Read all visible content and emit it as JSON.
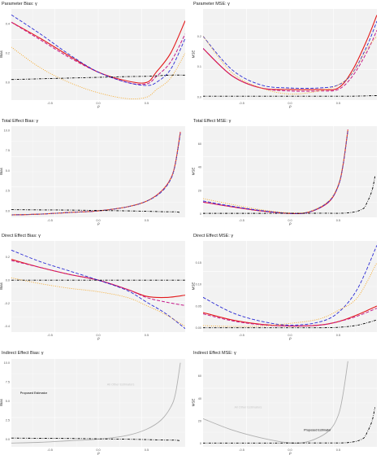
{
  "colors": {
    "proposed": "#000000",
    "red": "#e31a1c",
    "magenta": "#c51b8a",
    "blue": "#2b2bd4",
    "orange": "#f5a623",
    "gray": "#b0b0b0",
    "panel_bg": "#f2f2f2",
    "grid": "#ffffff",
    "annotation_gray": "#c8c8c8"
  },
  "chart_data": [
    {
      "type": "line",
      "title": "Parameter Bias: γ",
      "xlabel": "ρ",
      "ylabel": "Bias",
      "xlim": [
        -0.9,
        0.9
      ],
      "ylim": [
        -0.12,
        0.5
      ],
      "xticks": [
        -0.5,
        0.0,
        0.5
      ],
      "xtick_labels": [
        "-0.5",
        "0.0",
        "0.5"
      ],
      "yticks": [
        0.0,
        0.2,
        0.4
      ],
      "ytick_labels": [
        "0.0",
        "0.2",
        "0.4"
      ],
      "grid": true,
      "x": [
        -0.9,
        -0.6,
        -0.3,
        0.0,
        0.3,
        0.5,
        0.6,
        0.75,
        0.9
      ],
      "series": [
        {
          "style": "solid-red",
          "values": [
            0.41,
            0.3,
            0.18,
            0.07,
            0.01,
            0.0,
            0.07,
            0.2,
            0.42
          ]
        },
        {
          "style": "dashed-magenta",
          "values": [
            0.41,
            0.29,
            0.17,
            0.07,
            0.0,
            -0.01,
            0.04,
            0.14,
            0.33
          ]
        },
        {
          "style": "dashed-blue",
          "values": [
            0.46,
            0.33,
            0.19,
            0.07,
            0.0,
            -0.02,
            0.0,
            0.09,
            0.3
          ]
        },
        {
          "style": "dotted-orange",
          "values": [
            0.24,
            0.1,
            0.0,
            -0.07,
            -0.11,
            -0.1,
            -0.05,
            0.03,
            0.2
          ]
        },
        {
          "style": "dotdash-black",
          "values": [
            0.02,
            0.025,
            0.03,
            0.035,
            0.04,
            0.042,
            0.045,
            0.05,
            0.05
          ]
        }
      ]
    },
    {
      "type": "line",
      "title": "Parameter MSE: γ",
      "xlabel": "ρ",
      "ylabel": "MSE",
      "xlim": [
        -0.9,
        0.9
      ],
      "ylim": [
        -0.01,
        0.29
      ],
      "xticks": [
        -0.5,
        0.0,
        0.5
      ],
      "xtick_labels": [
        "-0.5",
        "0.0",
        "0.5"
      ],
      "yticks": [
        0.0,
        0.1,
        0.2
      ],
      "ytick_labels": [
        "0.0",
        "0.1",
        "0.2"
      ],
      "grid": true,
      "x": [
        -0.9,
        -0.6,
        -0.3,
        0.0,
        0.3,
        0.5,
        0.65,
        0.8,
        0.9
      ],
      "series": [
        {
          "style": "solid-red",
          "values": [
            0.16,
            0.07,
            0.03,
            0.025,
            0.025,
            0.03,
            0.09,
            0.19,
            0.27
          ]
        },
        {
          "style": "dashed-magenta",
          "values": [
            0.16,
            0.07,
            0.03,
            0.02,
            0.02,
            0.025,
            0.07,
            0.15,
            0.22
          ]
        },
        {
          "style": "dashed-blue",
          "values": [
            0.2,
            0.09,
            0.04,
            0.03,
            0.03,
            0.04,
            0.08,
            0.17,
            0.25
          ]
        },
        {
          "style": "dotted-orange",
          "values": [
            0.2,
            0.08,
            0.03,
            0.01,
            0.02,
            0.04,
            0.08,
            0.16,
            0.2
          ]
        },
        {
          "style": "dotdash-black",
          "values": [
            0.003,
            0.003,
            0.003,
            0.003,
            0.003,
            0.003,
            0.003,
            0.004,
            0.005
          ]
        }
      ]
    },
    {
      "type": "line",
      "title": "Total Effect Bias: γ",
      "xlabel": "ρ",
      "ylabel": "Bias",
      "xlim": [
        -0.9,
        0.9
      ],
      "ylim": [
        -0.8,
        10.5
      ],
      "xticks": [
        -0.5,
        0.0,
        0.5
      ],
      "xtick_labels": [
        "-0.5",
        "0.0",
        "0.5"
      ],
      "yticks": [
        0.0,
        2.5,
        5.0,
        7.5,
        10.0
      ],
      "ytick_labels": [
        "0.0",
        "2.5",
        "5.0",
        "7.5",
        "10.0"
      ],
      "grid": true,
      "x": [
        -0.9,
        -0.6,
        -0.3,
        0.0,
        0.3,
        0.5,
        0.65,
        0.75,
        0.8,
        0.85
      ],
      "series": [
        {
          "style": "solid-red",
          "values": [
            -0.5,
            -0.4,
            -0.2,
            0.0,
            0.5,
            1.2,
            2.4,
            4.0,
            6.0,
            9.8
          ]
        },
        {
          "style": "dashed-magenta",
          "values": [
            -0.5,
            -0.4,
            -0.2,
            0.0,
            0.5,
            1.2,
            2.4,
            4.0,
            6.0,
            9.8
          ]
        },
        {
          "style": "dashed-blue",
          "values": [
            -0.5,
            -0.4,
            -0.2,
            0.0,
            0.5,
            1.2,
            2.3,
            3.9,
            5.9,
            9.6
          ]
        },
        {
          "style": "dotted-orange",
          "values": [
            -0.5,
            -0.4,
            -0.2,
            0.0,
            0.5,
            1.2,
            2.4,
            4.0,
            6.0,
            9.8
          ]
        },
        {
          "style": "dotdash-black",
          "values": [
            0.15,
            0.12,
            0.1,
            0.05,
            0.0,
            -0.05,
            -0.1,
            -0.12,
            -0.12,
            -0.2
          ]
        }
      ]
    },
    {
      "type": "line",
      "title": "Total Effect MSE: γ",
      "xlabel": "ρ",
      "ylabel": "MSE",
      "xlim": [
        -0.9,
        0.9
      ],
      "ylim": [
        -3,
        75
      ],
      "xticks": [
        -0.5,
        0.0,
        0.5
      ],
      "xtick_labels": [
        "-0.5",
        "0.0",
        "0.5"
      ],
      "yticks": [
        0,
        20,
        40,
        60
      ],
      "ytick_labels": [
        "0",
        "20",
        "40",
        "60"
      ],
      "grid": true,
      "x": [
        -0.9,
        -0.6,
        -0.3,
        0.0,
        0.2,
        0.4,
        0.5,
        0.55,
        0.6
      ],
      "series": [
        {
          "style": "solid-red",
          "values": [
            10,
            6,
            2.5,
            0.3,
            1.5,
            10,
            24,
            42,
            72
          ]
        },
        {
          "style": "dashed-magenta",
          "values": [
            10,
            6,
            2.5,
            0.3,
            1.5,
            10,
            24,
            42,
            72
          ]
        },
        {
          "style": "dashed-blue",
          "values": [
            11,
            6.5,
            2.8,
            0.4,
            1.6,
            10.5,
            24,
            42,
            71
          ]
        },
        {
          "style": "dotted-orange",
          "values": [
            13,
            8,
            3.5,
            0.8,
            2.0,
            11,
            25,
            43,
            72
          ]
        },
        {
          "style": "dotdash-black",
          "x": [
            -0.9,
            -0.3,
            0.3,
            0.6,
            0.75,
            0.8,
            0.85,
            0.88
          ],
          "values": [
            0.4,
            0.4,
            0.5,
            0.8,
            4,
            10,
            20,
            32
          ]
        }
      ]
    },
    {
      "type": "line",
      "title": "Direct Effect Bias: γ",
      "xlabel": "ρ",
      "ylabel": "Bias",
      "xlim": [
        -0.9,
        0.9
      ],
      "ylim": [
        -0.45,
        0.34
      ],
      "xticks": [
        -0.5,
        0.0,
        0.5
      ],
      "xtick_labels": [
        "-0.5",
        "0.0",
        "0.5"
      ],
      "yticks": [
        -0.4,
        -0.2,
        0.0,
        0.2
      ],
      "ytick_labels": [
        "-0.4",
        "-0.2",
        "0.0",
        "0.2"
      ],
      "grid": true,
      "x": [
        -0.9,
        -0.6,
        -0.3,
        0.0,
        0.3,
        0.5,
        0.7,
        0.9
      ],
      "series": [
        {
          "style": "solid-red",
          "values": [
            0.18,
            0.11,
            0.05,
            0.0,
            -0.08,
            -0.14,
            -0.15,
            -0.13
          ]
        },
        {
          "style": "dashed-magenta",
          "values": [
            0.17,
            0.11,
            0.05,
            0.0,
            -0.08,
            -0.15,
            -0.19,
            -0.22
          ]
        },
        {
          "style": "dashed-blue",
          "values": [
            0.26,
            0.16,
            0.08,
            0.0,
            -0.09,
            -0.19,
            -0.29,
            -0.42
          ]
        },
        {
          "style": "dotted-orange",
          "values": [
            0.02,
            -0.03,
            -0.07,
            -0.1,
            -0.15,
            -0.22,
            -0.3,
            -0.4
          ]
        },
        {
          "style": "dotdash-black",
          "values": [
            0.0,
            0.0,
            0.0,
            0.0,
            0.0,
            0.0,
            0.0,
            0.0
          ]
        }
      ]
    },
    {
      "type": "line",
      "title": "Direct Effect MSE: γ",
      "xlabel": "ρ",
      "ylabel": "MSE",
      "xlim": [
        -0.9,
        0.9
      ],
      "ylim": [
        -0.01,
        0.2
      ],
      "xticks": [
        -0.5,
        0.0,
        0.5
      ],
      "xtick_labels": [
        "-0.5",
        "0.0",
        "0.5"
      ],
      "yticks": [
        0.0,
        0.05,
        0.1,
        0.15
      ],
      "ytick_labels": [
        "0.00",
        "0.05",
        "0.10",
        "0.15"
      ],
      "grid": true,
      "x": [
        -0.9,
        -0.6,
        -0.3,
        0.0,
        0.3,
        0.5,
        0.7,
        0.9
      ],
      "series": [
        {
          "style": "solid-red",
          "values": [
            0.035,
            0.018,
            0.008,
            0.004,
            0.006,
            0.014,
            0.03,
            0.05
          ]
        },
        {
          "style": "dashed-magenta",
          "values": [
            0.032,
            0.016,
            0.007,
            0.004,
            0.006,
            0.014,
            0.027,
            0.045
          ]
        },
        {
          "style": "dashed-blue",
          "values": [
            0.07,
            0.035,
            0.015,
            0.006,
            0.013,
            0.035,
            0.09,
            0.19
          ]
        },
        {
          "style": "dotted-orange",
          "values": [
            0.005,
            0.003,
            0.004,
            0.01,
            0.02,
            0.04,
            0.07,
            0.15
          ]
        },
        {
          "style": "dotdash-black",
          "values": [
            0.0,
            0.0,
            0.0,
            0.0,
            0.0,
            0.001,
            0.006,
            0.018
          ]
        }
      ]
    },
    {
      "type": "line",
      "title": "Indirect Effect Bias: γ",
      "xlabel": "ρ",
      "ylabel": "Bias",
      "xlim": [
        -0.9,
        0.9
      ],
      "ylim": [
        -1.0,
        10.5
      ],
      "xticks": [
        -0.5,
        0.0,
        0.5
      ],
      "xtick_labels": [
        "-0.5",
        "0.0",
        "0.5"
      ],
      "yticks": [
        0.0,
        2.5,
        5.0,
        7.5,
        10.0
      ],
      "ytick_labels": [
        "0.0",
        "2.5",
        "5.0",
        "7.5",
        "10.0"
      ],
      "grid": true,
      "annotations": [
        {
          "text": "Proposed Estimator",
          "color": "black"
        },
        {
          "text": "All Other Estimators",
          "color": "gray"
        }
      ],
      "x": [
        -0.9,
        -0.6,
        -0.3,
        0.0,
        0.3,
        0.5,
        0.65,
        0.75,
        0.8,
        0.85
      ],
      "series": [
        {
          "style": "solid-gray",
          "values": [
            -0.5,
            -0.4,
            -0.2,
            0.0,
            0.5,
            1.3,
            2.5,
            4.2,
            6.0,
            10.0
          ]
        },
        {
          "style": "dotdash-black",
          "values": [
            0.15,
            0.12,
            0.1,
            0.05,
            0.0,
            -0.05,
            -0.1,
            -0.12,
            -0.12,
            -0.2
          ]
        }
      ]
    },
    {
      "type": "line",
      "title": "Indirect Effect MSE: γ",
      "xlabel": "ρ",
      "ylabel": "MSE",
      "xlim": [
        -0.9,
        0.9
      ],
      "ylim": [
        -3,
        75
      ],
      "xticks": [
        -0.5,
        0.0,
        0.5
      ],
      "xtick_labels": [
        "-0.5",
        "0.0",
        "0.5"
      ],
      "yticks": [
        0,
        20,
        40,
        60
      ],
      "ytick_labels": [
        "0",
        "20",
        "40",
        "60"
      ],
      "grid": true,
      "annotations": [
        {
          "text": "All Other Estimators",
          "color": "gray"
        },
        {
          "text": "Proposed Estimator",
          "color": "black"
        }
      ],
      "x": [
        -0.9,
        -0.6,
        -0.3,
        0.0,
        0.2,
        0.4,
        0.5,
        0.55,
        0.6
      ],
      "series": [
        {
          "style": "solid-gray",
          "values": [
            22,
            12,
            5,
            0.5,
            2,
            11,
            25,
            44,
            73
          ]
        },
        {
          "style": "dotdash-black",
          "x": [
            -0.9,
            -0.3,
            0.3,
            0.6,
            0.75,
            0.8,
            0.85,
            0.88
          ],
          "values": [
            0.4,
            0.4,
            0.5,
            0.8,
            4,
            10,
            20,
            32
          ]
        }
      ]
    }
  ]
}
